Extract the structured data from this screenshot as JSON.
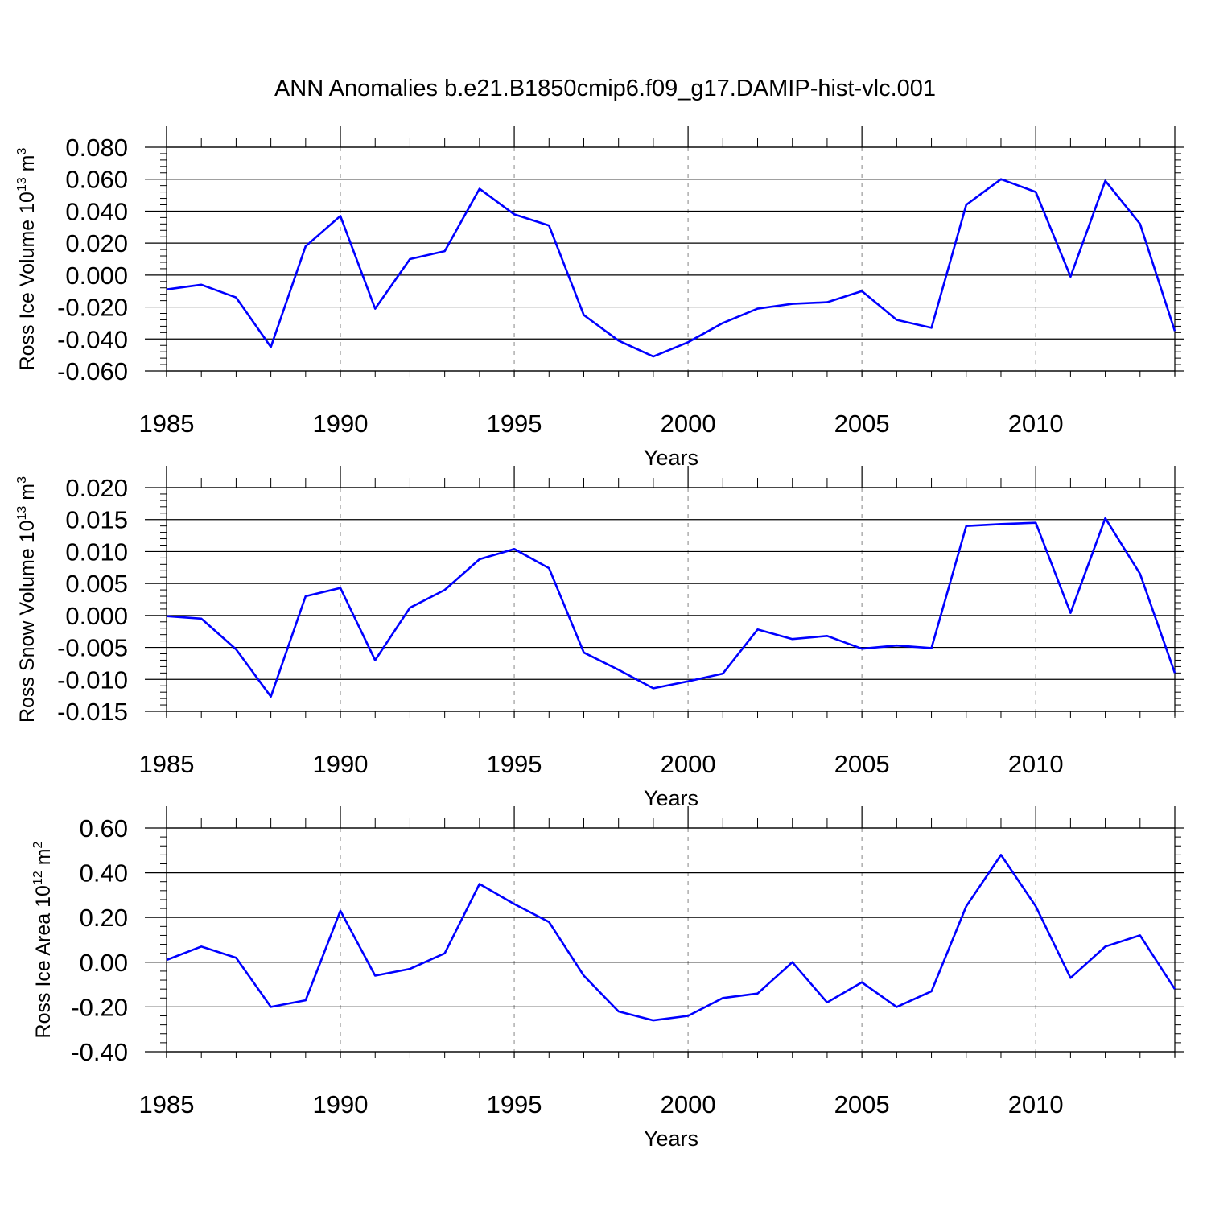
{
  "figure": {
    "title": "ANN Anomalies b.e21.B1850cmip6.f09_g17.DAMIP-hist-vlc.001"
  },
  "colors": {
    "line": "#0000ff",
    "axis": "#000000",
    "grid": "#9a9a9a"
  },
  "chart_data": [
    {
      "type": "line",
      "ylabel": "Ross Ice Volume 10",
      "ylabel_exponent": "13",
      "ylabel_unit": "m",
      "ylabel_unit_exponent": "3",
      "xlabel": "Years",
      "xlim": [
        1985,
        2014
      ],
      "ylim": [
        -0.06,
        0.08
      ],
      "xticks": [
        1985,
        1990,
        1995,
        2000,
        2005,
        2010
      ],
      "yticks": [
        "-0.060",
        "-0.040",
        "-0.020",
        "0.000",
        "0.020",
        "0.040",
        "0.060",
        "0.080"
      ],
      "grid": "vertical dashed at major x ticks",
      "series": [
        {
          "x": [
            1985,
            1986,
            1987,
            1988,
            1989,
            1990,
            1991,
            1992,
            1993,
            1994,
            1995,
            1996,
            1997,
            1998,
            1999,
            2000,
            2001,
            2002,
            2003,
            2004,
            2005,
            2006,
            2007,
            2008,
            2009,
            2010,
            2011,
            2012,
            2013,
            2014
          ],
          "values": [
            -0.009,
            -0.006,
            -0.014,
            -0.045,
            0.018,
            0.037,
            -0.021,
            0.01,
            0.015,
            0.054,
            0.038,
            0.031,
            -0.025,
            -0.041,
            -0.051,
            -0.042,
            -0.03,
            -0.021,
            -0.018,
            -0.017,
            -0.01,
            -0.028,
            -0.033,
            0.044,
            0.06,
            0.052,
            -0.001,
            0.059,
            0.032,
            -0.035
          ]
        }
      ]
    },
    {
      "type": "line",
      "ylabel": "Ross Snow Volume 10",
      "ylabel_exponent": "13",
      "ylabel_unit": "m",
      "ylabel_unit_exponent": "3",
      "xlabel": "Years",
      "xlim": [
        1985,
        2014
      ],
      "ylim": [
        -0.015,
        0.02
      ],
      "xticks": [
        1985,
        1990,
        1995,
        2000,
        2005,
        2010
      ],
      "yticks": [
        "-0.015",
        "-0.010",
        "-0.005",
        "0.000",
        "0.005",
        "0.010",
        "0.015",
        "0.020"
      ],
      "grid": "vertical dashed at major x ticks",
      "series": [
        {
          "x": [
            1985,
            1986,
            1987,
            1988,
            1989,
            1990,
            1991,
            1992,
            1993,
            1994,
            1995,
            1996,
            1997,
            1998,
            1999,
            2000,
            2001,
            2002,
            2003,
            2004,
            2005,
            2006,
            2007,
            2008,
            2009,
            2010,
            2011,
            2012,
            2013,
            2014
          ],
          "values": [
            -0.0001,
            -0.0005,
            -0.0053,
            -0.0127,
            0.003,
            0.0043,
            -0.007,
            0.0012,
            0.004,
            0.0088,
            0.0104,
            0.0074,
            -0.0058,
            -0.0085,
            -0.0114,
            -0.0103,
            -0.0091,
            -0.0022,
            -0.0037,
            -0.0032,
            -0.0052,
            -0.0047,
            -0.0051,
            0.014,
            0.0143,
            0.0145,
            0.0004,
            0.0152,
            0.0065,
            -0.009
          ]
        }
      ]
    },
    {
      "type": "line",
      "ylabel": "Ross Ice Area 10",
      "ylabel_exponent": "12",
      "ylabel_unit": "m",
      "ylabel_unit_exponent": "2",
      "xlabel": "Years",
      "xlim": [
        1985,
        2014
      ],
      "ylim": [
        -0.4,
        0.6
      ],
      "xticks": [
        1985,
        1990,
        1995,
        2000,
        2005,
        2010
      ],
      "yticks": [
        "-0.40",
        "-0.20",
        "0.00",
        "0.20",
        "0.40",
        "0.60"
      ],
      "grid": "vertical dashed at major x ticks",
      "series": [
        {
          "x": [
            1985,
            1986,
            1987,
            1988,
            1989,
            1990,
            1991,
            1992,
            1993,
            1994,
            1995,
            1996,
            1997,
            1998,
            1999,
            2000,
            2001,
            2002,
            2003,
            2004,
            2005,
            2006,
            2007,
            2008,
            2009,
            2010,
            2011,
            2012,
            2013,
            2014
          ],
          "values": [
            0.01,
            0.07,
            0.02,
            -0.2,
            -0.17,
            0.23,
            -0.06,
            -0.03,
            0.04,
            0.35,
            0.26,
            0.18,
            -0.06,
            -0.22,
            -0.26,
            -0.24,
            -0.16,
            -0.14,
            0.0,
            -0.18,
            -0.09,
            -0.2,
            -0.13,
            0.25,
            0.48,
            0.25,
            -0.07,
            0.07,
            0.12,
            -0.12
          ]
        }
      ]
    }
  ]
}
